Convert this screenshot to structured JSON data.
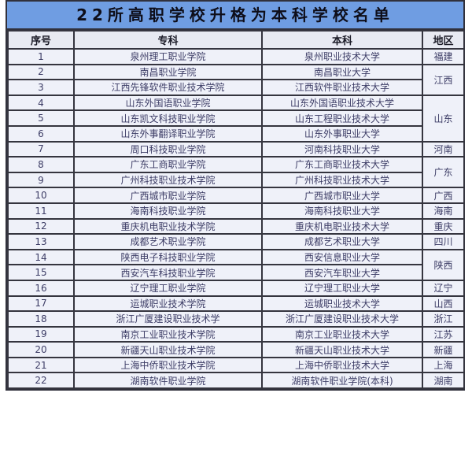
{
  "title": "22所高职学校升格为本科学校名单",
  "table": {
    "headers": [
      "序号",
      "专科",
      "本科",
      "地区"
    ],
    "rows": [
      {
        "num": "1",
        "college": "泉州理工职业学院",
        "university": "泉州职业技术大学",
        "region": "福建",
        "region_span": 1
      },
      {
        "num": "2",
        "college": "南昌职业学院",
        "university": "南昌职业大学",
        "region": "江西",
        "region_span": 2
      },
      {
        "num": "3",
        "college": "江西先锋软件职业技术学院",
        "university": "江西软件职业技术大学"
      },
      {
        "num": "4",
        "college": "山东外国语职业学院",
        "university": "山东外国语职业技术大学",
        "region": "山东",
        "region_span": 3
      },
      {
        "num": "5",
        "college": "山东凯文科技职业学院",
        "university": "山东工程职业技术大学"
      },
      {
        "num": "6",
        "college": "山东外事翻译职业学院",
        "university": "山东外事职业大学"
      },
      {
        "num": "7",
        "college": "周口科技职业学院",
        "university": "河南科技职业大学",
        "region": "河南",
        "region_span": 1
      },
      {
        "num": "8",
        "college": "广东工商职业学院",
        "university": "广东工商职业技术大学",
        "region": "广东",
        "region_span": 2
      },
      {
        "num": "9",
        "college": "广州科技职业技术学院",
        "university": "广州科技职业技术大学"
      },
      {
        "num": "10",
        "college": "广西城市职业学院",
        "university": "广西城市职业大学",
        "region": "广西",
        "region_span": 1
      },
      {
        "num": "11",
        "college": "海南科技职业学院",
        "university": "海南科技职业大学",
        "region": "海南",
        "region_span": 1
      },
      {
        "num": "12",
        "college": "重庆机电职业技术学院",
        "university": "重庆机电职业技术大学",
        "region": "重庆",
        "region_span": 1
      },
      {
        "num": "13",
        "college": "成都艺术职业学院",
        "university": "成都艺术职业大学",
        "region": "四川",
        "region_span": 1
      },
      {
        "num": "14",
        "college": "陕西电子科技职业学院",
        "university": "西安信息职业大学",
        "region": "陕西",
        "region_span": 2
      },
      {
        "num": "15",
        "college": "西安汽车科技职业学院",
        "university": "西安汽车职业大学"
      },
      {
        "num": "16",
        "college": "辽宁理工职业学院",
        "university": "辽宁理工职业大学",
        "region": "辽宁",
        "region_span": 1
      },
      {
        "num": "17",
        "college": "运城职业技术学院",
        "university": "运城职业技术大学",
        "region": "山西",
        "region_span": 1
      },
      {
        "num": "18",
        "college": "浙江广厦建设职业技术学",
        "university": "浙江广厦建设职业技术大学",
        "region": "浙江",
        "region_span": 1
      },
      {
        "num": "19",
        "college": "南京工业职业技术学院",
        "university": "南京工业职业技术大学",
        "region": "江苏",
        "region_span": 1
      },
      {
        "num": "20",
        "college": "新疆天山职业技术学院",
        "university": "新疆天山职业技术大学",
        "region": "新疆",
        "region_span": 1
      },
      {
        "num": "21",
        "college": "上海中侨职业技术学院",
        "university": "上海中侨职业技术大学",
        "region": "上海",
        "region_span": 1
      },
      {
        "num": "22",
        "college": "湖南软件职业学院",
        "university": "湖南软件职业学院(本科)",
        "region": "湖南",
        "region_span": 1
      }
    ]
  },
  "colors": {
    "title_bg": "#6f9de2",
    "title_text": "#0e0e1a",
    "header_bg": "#e8eaf2",
    "row_bg": "#eff1f9",
    "border": "#31313c",
    "cell_text": "#3d3d66"
  }
}
